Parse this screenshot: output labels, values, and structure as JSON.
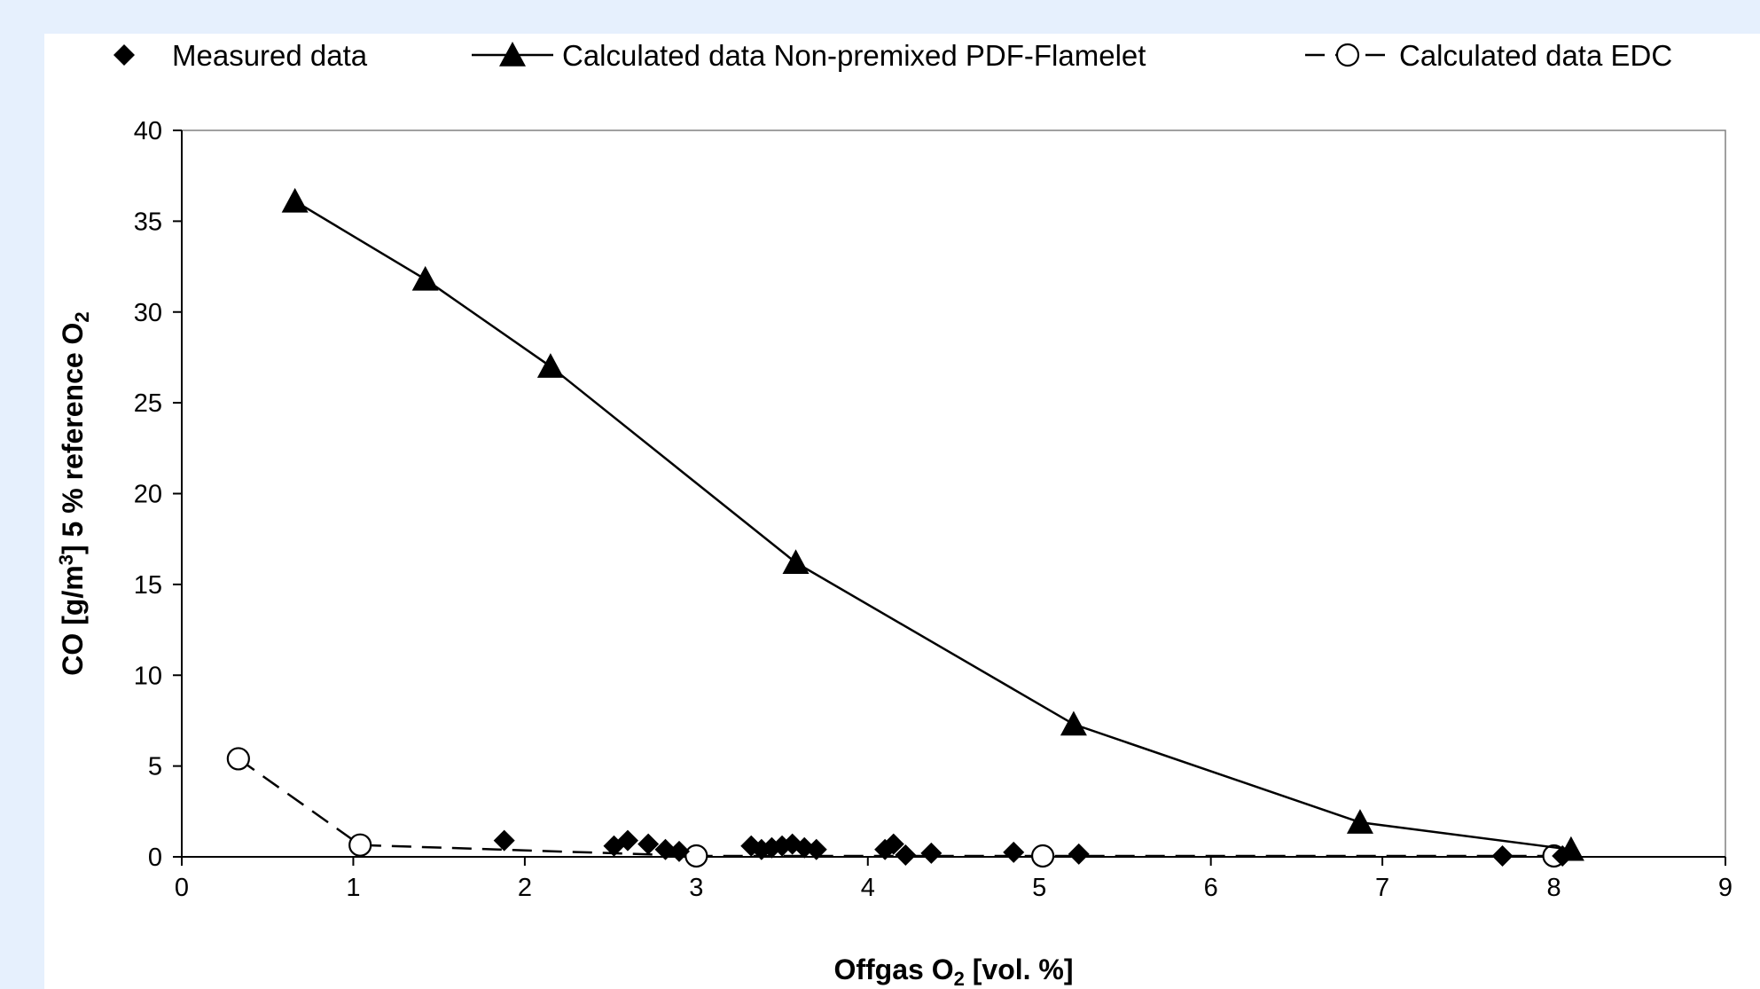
{
  "chart_data": {
    "type": "scatter",
    "title": "",
    "xlabel": {
      "prefix": "Offgas O",
      "sub": "2",
      "suffix": " [vol. %]"
    },
    "ylabel": {
      "p1": "CO [g/m",
      "sup": "3",
      "p2": "] 5 % reference O",
      "sub": "2"
    },
    "xlim": [
      0,
      9
    ],
    "ylim": [
      0,
      40
    ],
    "xticks": [
      "0",
      "1",
      "2",
      "3",
      "4",
      "5",
      "6",
      "7",
      "8",
      "9"
    ],
    "yticks": [
      "0",
      "5",
      "10",
      "15",
      "20",
      "25",
      "30",
      "35",
      "40"
    ],
    "grid": false,
    "legend_position": "top",
    "series": [
      {
        "name": "Measured data",
        "marker": "diamond",
        "line": "none",
        "x": [
          1.88,
          2.52,
          2.6,
          2.72,
          2.82,
          2.9,
          3.32,
          3.38,
          3.44,
          3.5,
          3.56,
          3.63,
          3.7,
          4.1,
          4.15,
          4.22,
          4.37,
          4.85,
          5.23,
          7.7,
          8.05
        ],
        "y": [
          0.9,
          0.6,
          0.9,
          0.7,
          0.4,
          0.3,
          0.6,
          0.4,
          0.5,
          0.6,
          0.7,
          0.5,
          0.4,
          0.4,
          0.7,
          0.1,
          0.2,
          0.25,
          0.15,
          0.05,
          0.05
        ]
      },
      {
        "name": "Calculated data Non-premixed PDF-Flamelet",
        "marker": "triangle",
        "line": "solid",
        "x": [
          0.66,
          1.42,
          2.15,
          3.58,
          5.2,
          6.87,
          8.1
        ],
        "y": [
          36.1,
          31.8,
          27.0,
          16.2,
          7.3,
          1.9,
          0.4
        ]
      },
      {
        "name": "Calculated data EDC",
        "marker": "circle-open",
        "line": "dashed",
        "x": [
          0.33,
          1.04,
          3.0,
          5.02,
          8.0
        ],
        "y": [
          5.4,
          0.65,
          0.05,
          0.05,
          0.05
        ]
      }
    ]
  }
}
